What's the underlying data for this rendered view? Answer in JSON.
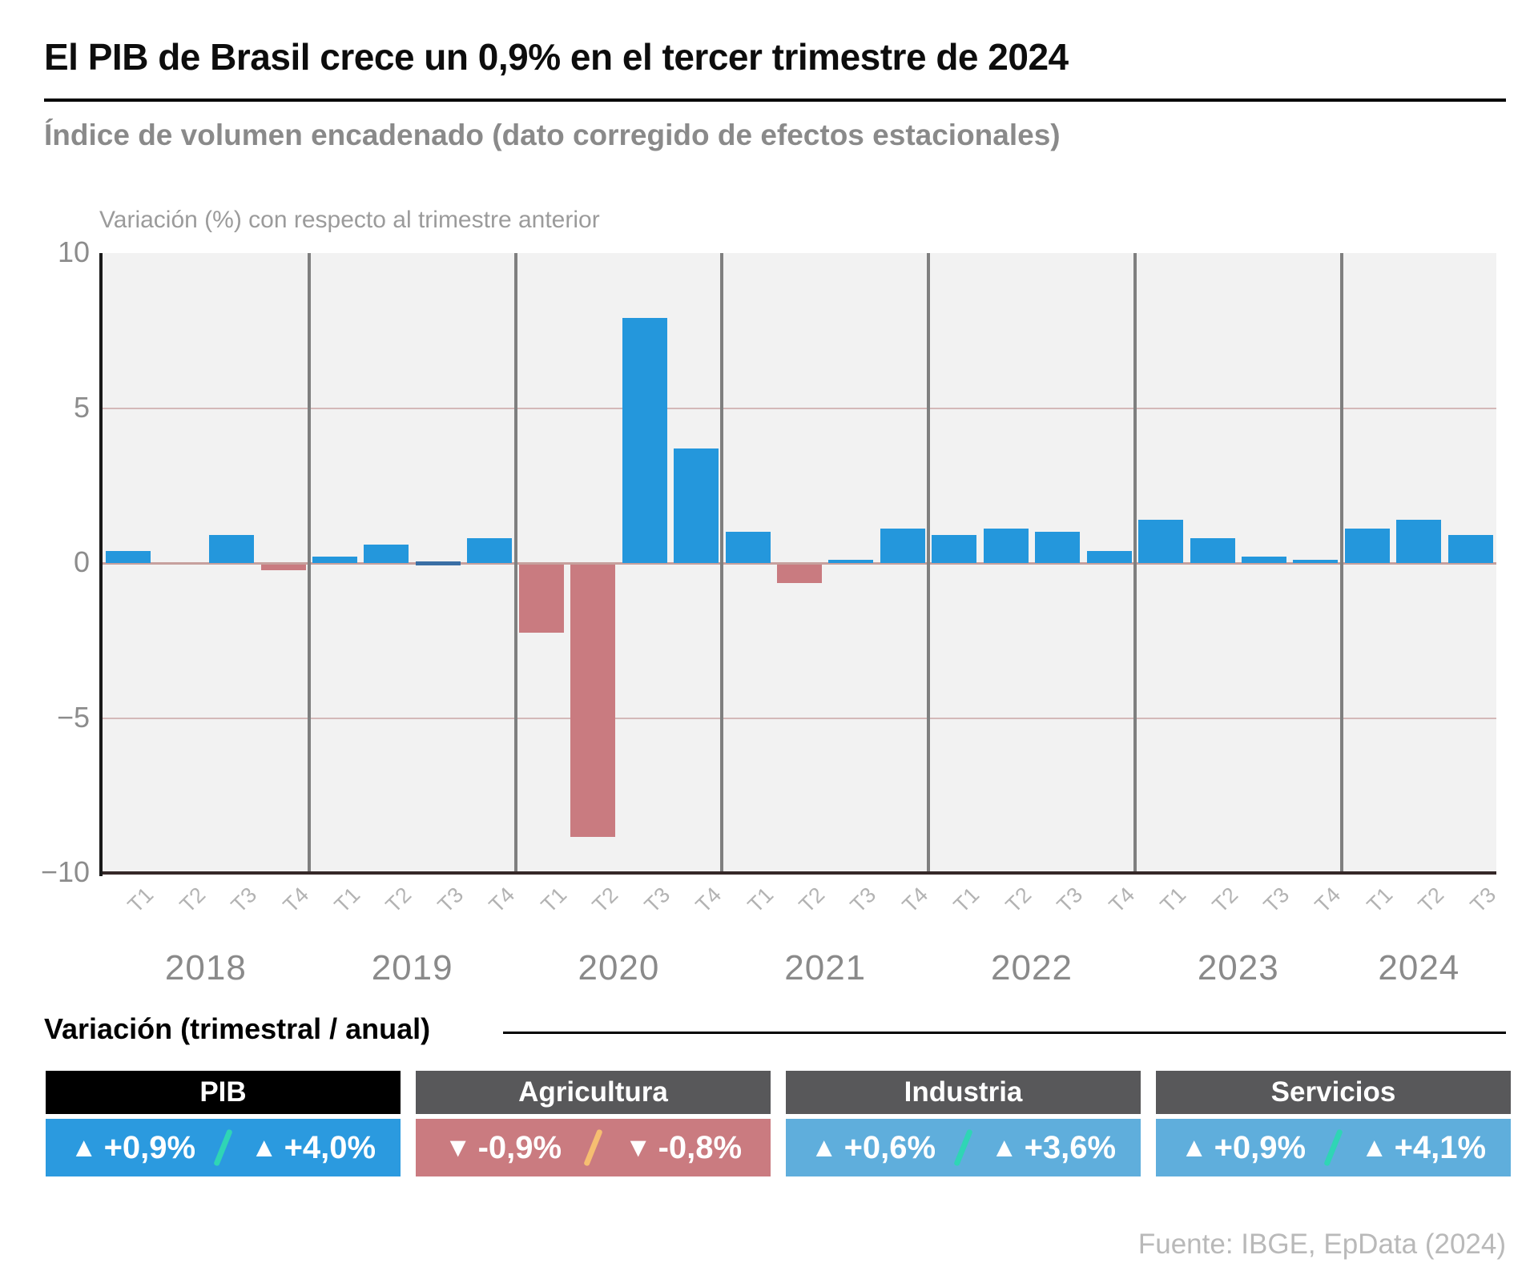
{
  "header": {
    "title": "El PIB de Brasil crece un 0,9% en el tercer trimestre de 2024",
    "subtitle": "Índice de volumen encadenado (dato corregido de efectos estacionales)"
  },
  "chart_data": {
    "type": "bar",
    "title": "El PIB de Brasil crece un 0,9% en el tercer trimestre de 2024",
    "annotation": "Variación (%) con respecto al trimestre anterior",
    "series_name": "PIB de Brasil, variación trimestral (%)",
    "unit": "%",
    "ylim": [
      -10,
      10
    ],
    "yticks": [
      10,
      5,
      0,
      -5,
      -10
    ],
    "grid": "horizontal gridlines at 5, 0 and -5; vertical gray separators between years",
    "years": [
      {
        "year": "2018",
        "quarters": [
          "T1",
          "T2",
          "T3",
          "T4"
        ],
        "values": [
          0.4,
          0.0,
          0.9,
          -0.2
        ]
      },
      {
        "year": "2019",
        "quarters": [
          "T1",
          "T2",
          "T3",
          "T4"
        ],
        "values": [
          0.2,
          0.6,
          0.0,
          0.8
        ]
      },
      {
        "year": "2020",
        "quarters": [
          "T1",
          "T2",
          "T3",
          "T4"
        ],
        "values": [
          -2.2,
          -8.8,
          7.9,
          3.7
        ]
      },
      {
        "year": "2021",
        "quarters": [
          "T1",
          "T2",
          "T3",
          "T4"
        ],
        "values": [
          1.0,
          -0.6,
          0.1,
          1.1
        ]
      },
      {
        "year": "2022",
        "quarters": [
          "T1",
          "T2",
          "T3",
          "T4"
        ],
        "values": [
          0.9,
          1.1,
          1.0,
          0.4
        ]
      },
      {
        "year": "2023",
        "quarters": [
          "T1",
          "T2",
          "T3",
          "T4"
        ],
        "values": [
          1.4,
          0.8,
          0.2,
          0.1
        ]
      },
      {
        "year": "2024",
        "quarters": [
          "T1",
          "T2",
          "T3"
        ],
        "values": [
          1.1,
          1.4,
          0.9
        ]
      }
    ],
    "near_zero_marker": {
      "year": "2019",
      "quarter": "T3"
    },
    "colors": {
      "positive_bar": "#2497DC",
      "negative_bar": "#C97B80",
      "near_zero_bar": "#3A6FA5",
      "plot_background": "#F2F2F2",
      "gridline": "#BC8A8A",
      "zero_line": "#C6A09D",
      "year_separator": "#7F7F7F",
      "axis_line": "#1A1A1A",
      "bottom_axis_line": "#352828"
    }
  },
  "legend": {
    "title": "Variación (trimestral / anual)",
    "cards": [
      {
        "label": "PIB",
        "header_bg": "#000000",
        "body_bg": "#2B9ADF",
        "slash_color": "#2FD5B5",
        "quarterly": {
          "icon": "▲",
          "value": "+0,9%"
        },
        "annual": {
          "icon": "▲",
          "value": "+4,0%"
        }
      },
      {
        "label": "Agricultura",
        "header_bg": "#58585A",
        "body_bg": "#CA7B80",
        "slash_color": "#F6BE71",
        "quarterly": {
          "icon": "▼",
          "value": "-0,9%"
        },
        "annual": {
          "icon": "▼",
          "value": "-0,8%"
        }
      },
      {
        "label": "Industria",
        "header_bg": "#58585A",
        "body_bg": "#5FAEDC",
        "slash_color": "#2FD5B5",
        "quarterly": {
          "icon": "▲",
          "value": "+0,6%"
        },
        "annual": {
          "icon": "▲",
          "value": "+3,6%"
        }
      },
      {
        "label": "Servicios",
        "header_bg": "#58585A",
        "body_bg": "#5FAEDC",
        "slash_color": "#2FD5B5",
        "quarterly": {
          "icon": "▲",
          "value": "+0,9%"
        },
        "annual": {
          "icon": "▲",
          "value": "+4,1%"
        }
      }
    ]
  },
  "source": "Fuente: IBGE, EpData (2024)"
}
